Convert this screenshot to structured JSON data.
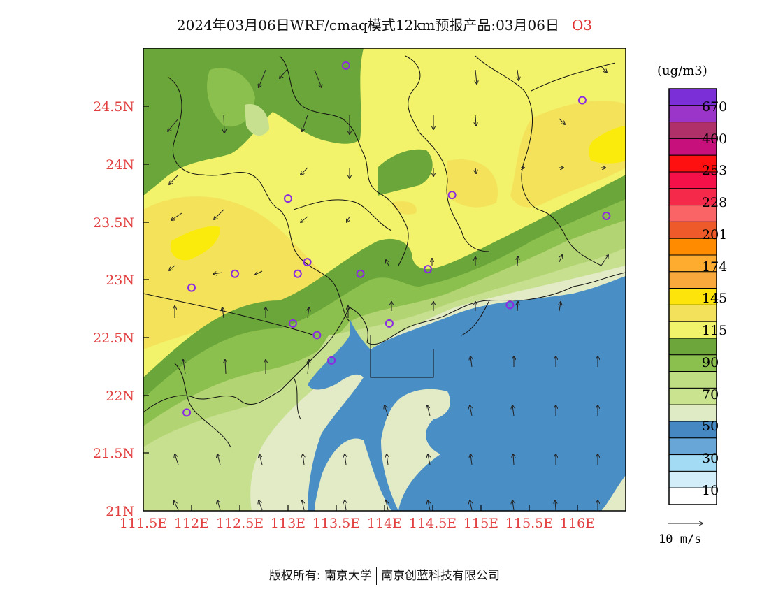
{
  "title": {
    "text": "2024年03月06日WRF/cmaq模式12km预报产品:03月06日",
    "pollutant": "O3"
  },
  "map": {
    "lon_range": [
      111.5,
      116.5
    ],
    "lat_range": [
      21,
      25
    ],
    "lat_ticks": [
      "24.5N",
      "24N",
      "23.5N",
      "23N",
      "22.5N",
      "22N",
      "21.5N",
      "21N"
    ],
    "lon_ticks": [
      "111.5E",
      "112E",
      "112.5E",
      "113E",
      "113.5E",
      "114E",
      "114.5E",
      "115E",
      "115.5E",
      "116E"
    ],
    "stations": [
      {
        "lon": 113.6,
        "lat": 24.85
      },
      {
        "lon": 116.05,
        "lat": 24.55
      },
      {
        "lon": 113.0,
        "lat": 23.7
      },
      {
        "lon": 114.7,
        "lat": 23.73
      },
      {
        "lon": 116.3,
        "lat": 23.55
      },
      {
        "lon": 112.45,
        "lat": 23.05
      },
      {
        "lon": 113.1,
        "lat": 23.05
      },
      {
        "lon": 113.2,
        "lat": 23.15
      },
      {
        "lon": 113.75,
        "lat": 23.05
      },
      {
        "lon": 114.45,
        "lat": 23.09
      },
      {
        "lon": 112.0,
        "lat": 22.93
      },
      {
        "lon": 113.05,
        "lat": 22.62
      },
      {
        "lon": 113.3,
        "lat": 22.52
      },
      {
        "lon": 114.05,
        "lat": 22.62
      },
      {
        "lon": 115.3,
        "lat": 22.78
      },
      {
        "lon": 113.45,
        "lat": 22.3
      },
      {
        "lon": 111.95,
        "lat": 21.85
      }
    ],
    "regions_colors": {
      "sea": "#4a8ec6",
      "coast_light": "#e2ebc6",
      "level_55": "#c7e090",
      "level_70": "#b3d472",
      "level_90": "#8cc04e",
      "level_100": "#6aa63a",
      "level_115": "#f2f36b",
      "level_130": "#f3e25a",
      "level_145": "#fbeb0c"
    }
  },
  "legend": {
    "unit": "(ug/m3)",
    "colors": [
      "#7b2fd6",
      "#9b34c9",
      "#b0306a",
      "#c8107c",
      "#ff1010",
      "#f5104a",
      "#f52a4a",
      "#fa6466",
      "#ef5a2a",
      "#ff8c00",
      "#fdac30",
      "#f9a83c",
      "#fde50c",
      "#f3e15c",
      "#f1f36a",
      "#6da63a",
      "#8cc04e",
      "#bfdd83",
      "#c9e38f",
      "#deebc4",
      "#4689c2",
      "#67a6d7",
      "#a3dbf5",
      "#d4eef9",
      "#ffffff"
    ],
    "labels": [
      "670",
      "400",
      "253",
      "228",
      "201",
      "174",
      "145",
      "115",
      "90",
      "70",
      "50",
      "30",
      "10"
    ]
  },
  "wind_vector": {
    "label": "10 m/s"
  },
  "footer": {
    "left": "版权所有: 南京大学",
    "right": "南京创蓝科技有限公司"
  }
}
